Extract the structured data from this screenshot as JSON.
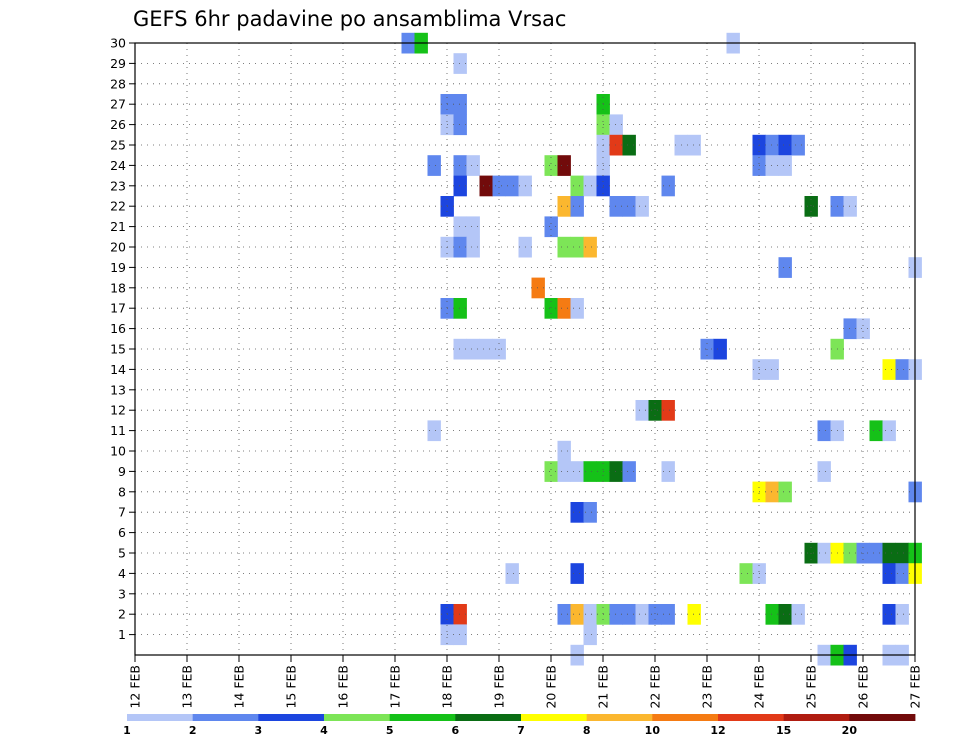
{
  "chart_data": {
    "type": "heatmap",
    "title": "GEFS 6hr padavine po ansamblima Vrsac",
    "xlabel": "",
    "ylabel": "",
    "x_ticks": [
      "12 FEB",
      "13 FEB",
      "14 FEB",
      "15 FEB",
      "16 FEB",
      "17 FEB",
      "18 FEB",
      "19 FEB",
      "20 FEB",
      "21 FEB",
      "22 FEB",
      "23 FEB",
      "24 FEB",
      "25 FEB",
      "26 FEB",
      "27 FEB"
    ],
    "y_ticks": [
      1,
      2,
      3,
      4,
      5,
      6,
      7,
      8,
      9,
      10,
      11,
      12,
      13,
      14,
      15,
      16,
      17,
      18,
      19,
      20,
      21,
      22,
      23,
      24,
      25,
      26,
      27,
      28,
      29,
      30
    ],
    "xlim_days": [
      0,
      15
    ],
    "ylim_members": [
      0,
      30
    ],
    "time_step": "6hr",
    "grid": true,
    "legend_position": "bottom",
    "levels": [
      "1",
      "2",
      "3",
      "4",
      "5",
      "6",
      "7",
      "8",
      "10",
      "12",
      "15",
      "20",
      ""
    ],
    "level_colors": [
      "#b4c6f7",
      "#5f87ee",
      "#1c45df",
      "#7de557",
      "#15c118",
      "#0a6d14",
      "#ffff00",
      "#fbb72f",
      "#f57b13",
      "#e23a18",
      "#b01c10",
      "#720b0b"
    ],
    "cells": [
      [
        5.25,
        30,
        1
      ],
      [
        5.5,
        30,
        4
      ],
      [
        11.5,
        30,
        0
      ],
      [
        6.25,
        29,
        0
      ],
      [
        6,
        27,
        1
      ],
      [
        6.25,
        27,
        1
      ],
      [
        9,
        27,
        4
      ],
      [
        6,
        26,
        0
      ],
      [
        6.25,
        26,
        1
      ],
      [
        9,
        26,
        3
      ],
      [
        9.25,
        26,
        0
      ],
      [
        9,
        25,
        0
      ],
      [
        9.25,
        25,
        9
      ],
      [
        9.5,
        25,
        5
      ],
      [
        10.5,
        25,
        0
      ],
      [
        10.75,
        25,
        0
      ],
      [
        12,
        25,
        2
      ],
      [
        12.25,
        25,
        1
      ],
      [
        12.5,
        25,
        2
      ],
      [
        12.75,
        25,
        1
      ],
      [
        5.75,
        24,
        1
      ],
      [
        6.25,
        24,
        1
      ],
      [
        6.5,
        24,
        0
      ],
      [
        8,
        24,
        3
      ],
      [
        8.25,
        24,
        11
      ],
      [
        9,
        24,
        0
      ],
      [
        12,
        24,
        1
      ],
      [
        12.25,
        24,
        0
      ],
      [
        12.5,
        24,
        0
      ],
      [
        6.25,
        23,
        2
      ],
      [
        6.75,
        23,
        11
      ],
      [
        7,
        23,
        1
      ],
      [
        7.25,
        23,
        1
      ],
      [
        7.5,
        23,
        0
      ],
      [
        8.5,
        23,
        3
      ],
      [
        8.75,
        23,
        0
      ],
      [
        9,
        23,
        2
      ],
      [
        10.25,
        23,
        1
      ],
      [
        6,
        22,
        2
      ],
      [
        8.25,
        22,
        7
      ],
      [
        8.5,
        22,
        1
      ],
      [
        9.25,
        22,
        1
      ],
      [
        9.5,
        22,
        1
      ],
      [
        9.75,
        22,
        0
      ],
      [
        13,
        22,
        5
      ],
      [
        13.5,
        22,
        1
      ],
      [
        13.75,
        22,
        0
      ],
      [
        6.25,
        21,
        0
      ],
      [
        6.5,
        21,
        0
      ],
      [
        8,
        21,
        1
      ],
      [
        6,
        20,
        0
      ],
      [
        6.25,
        20,
        1
      ],
      [
        6.5,
        20,
        0
      ],
      [
        7.5,
        20,
        0
      ],
      [
        8.25,
        20,
        3
      ],
      [
        8.5,
        20,
        3
      ],
      [
        8.75,
        20,
        7
      ],
      [
        12.5,
        19,
        1
      ],
      [
        15,
        19,
        0
      ],
      [
        7.75,
        18,
        8
      ],
      [
        6,
        17,
        1
      ],
      [
        6.25,
        17,
        4
      ],
      [
        8,
        17,
        4
      ],
      [
        8.25,
        17,
        8
      ],
      [
        8.5,
        17,
        0
      ],
      [
        13.75,
        16,
        1
      ],
      [
        14,
        16,
        0
      ],
      [
        6.25,
        15,
        0
      ],
      [
        6.5,
        15,
        0
      ],
      [
        6.75,
        15,
        0
      ],
      [
        7,
        15,
        0
      ],
      [
        11,
        15,
        1
      ],
      [
        11.25,
        15,
        2
      ],
      [
        13.5,
        15,
        3
      ],
      [
        12,
        14,
        0
      ],
      [
        12.25,
        14,
        0
      ],
      [
        14.5,
        14,
        6
      ],
      [
        14.75,
        14,
        1
      ],
      [
        15,
        14,
        0
      ],
      [
        9.75,
        12,
        0
      ],
      [
        10,
        12,
        5
      ],
      [
        10.25,
        12,
        9
      ],
      [
        5.75,
        11,
        0
      ],
      [
        13.25,
        11,
        1
      ],
      [
        13.5,
        11,
        0
      ],
      [
        14.25,
        11,
        4
      ],
      [
        14.5,
        11,
        0
      ],
      [
        8.25,
        10,
        0
      ],
      [
        8,
        9,
        3
      ],
      [
        8.25,
        9,
        0
      ],
      [
        8.5,
        9,
        0
      ],
      [
        8.75,
        9,
        4
      ],
      [
        9,
        9,
        4
      ],
      [
        9.25,
        9,
        5
      ],
      [
        9.5,
        9,
        1
      ],
      [
        10.25,
        9,
        0
      ],
      [
        13.25,
        9,
        0
      ],
      [
        12,
        8,
        6
      ],
      [
        12.25,
        8,
        7
      ],
      [
        12.5,
        8,
        3
      ],
      [
        15,
        8,
        1
      ],
      [
        8.5,
        7,
        2
      ],
      [
        8.75,
        7,
        1
      ],
      [
        13,
        5,
        5
      ],
      [
        13.25,
        5,
        0
      ],
      [
        13.5,
        5,
        6
      ],
      [
        13.75,
        5,
        3
      ],
      [
        14,
        5,
        1
      ],
      [
        14.25,
        5,
        1
      ],
      [
        14.5,
        5,
        5
      ],
      [
        14.75,
        5,
        5
      ],
      [
        15,
        5,
        4
      ],
      [
        7.25,
        4,
        0
      ],
      [
        8.5,
        4,
        2
      ],
      [
        11.75,
        4,
        3
      ],
      [
        12,
        4,
        0
      ],
      [
        14.5,
        4,
        2
      ],
      [
        14.75,
        4,
        1
      ],
      [
        15,
        4,
        6
      ],
      [
        6,
        2,
        2
      ],
      [
        6.25,
        2,
        9
      ],
      [
        8.25,
        2,
        1
      ],
      [
        8.5,
        2,
        7
      ],
      [
        8.75,
        2,
        0
      ],
      [
        9,
        2,
        3
      ],
      [
        9.25,
        2,
        1
      ],
      [
        9.5,
        2,
        1
      ],
      [
        9.75,
        2,
        0
      ],
      [
        10,
        2,
        1
      ],
      [
        10.25,
        2,
        1
      ],
      [
        10.75,
        2,
        6
      ],
      [
        12.25,
        2,
        4
      ],
      [
        12.5,
        2,
        5
      ],
      [
        12.75,
        2,
        0
      ],
      [
        14.5,
        2,
        2
      ],
      [
        14.75,
        2,
        0
      ],
      [
        6,
        1,
        0
      ],
      [
        6.25,
        1,
        0
      ],
      [
        8.75,
        1,
        0
      ],
      [
        8.5,
        0,
        0
      ],
      [
        13.25,
        0,
        0
      ],
      [
        13.5,
        0,
        4
      ],
      [
        13.75,
        0,
        2
      ],
      [
        14.5,
        0,
        0
      ],
      [
        14.75,
        0,
        0
      ]
    ]
  }
}
